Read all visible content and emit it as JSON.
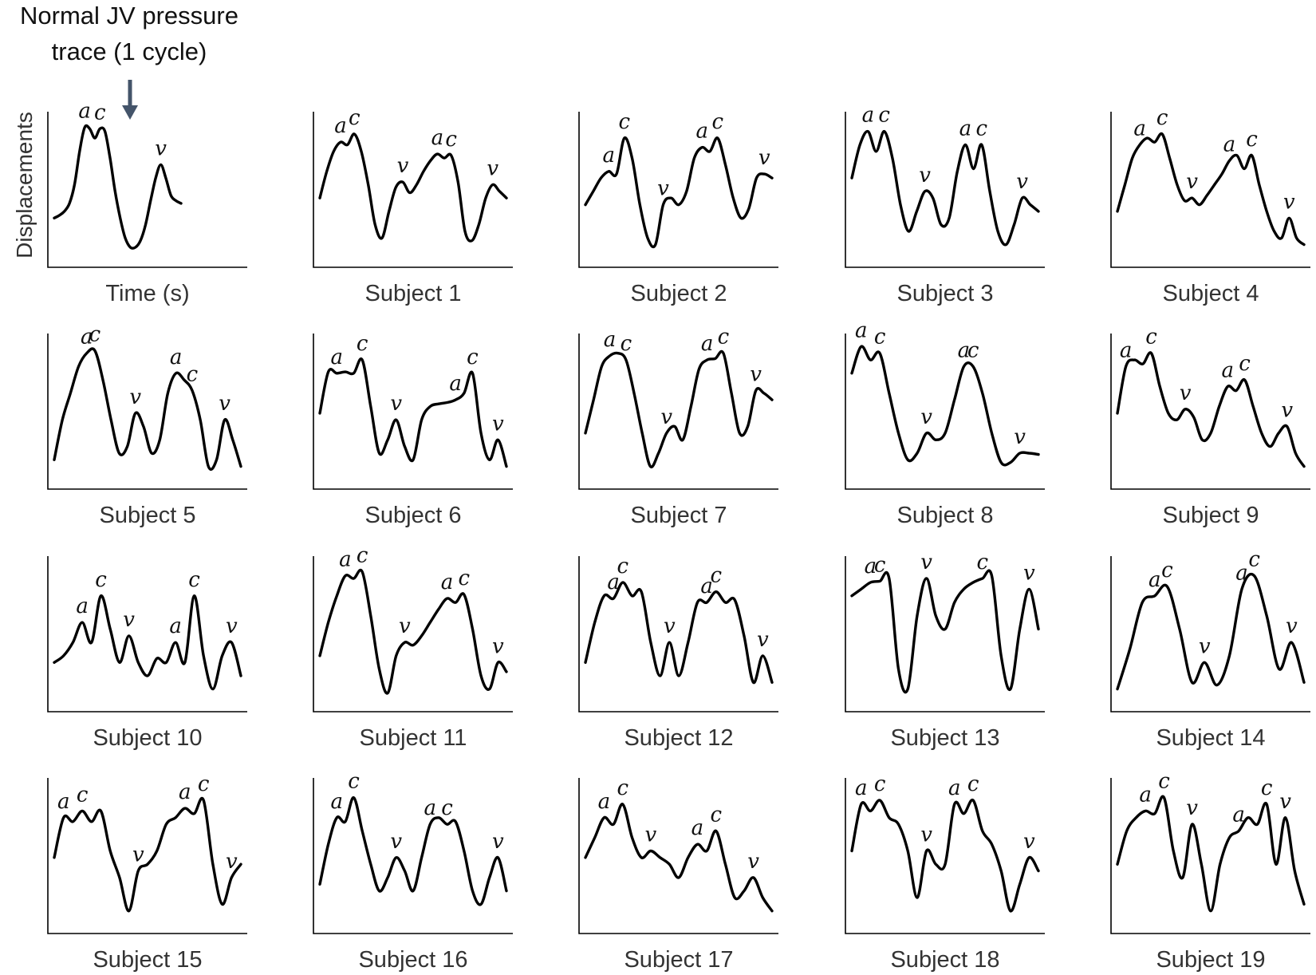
{
  "annotation": {
    "line1": "Normal JV pressure",
    "line2": "trace (1 cycle)"
  },
  "reference_panel": {
    "ylabel": "Displacements",
    "xlabel": "Time (s)"
  },
  "colors": {
    "trace": "#000000",
    "arrow": "#44546a",
    "label": "#333333"
  },
  "chart_data": {
    "type": "line",
    "title": "",
    "y_units": "arbitrary",
    "panels": [
      {
        "name": "",
        "xlabel": "Time (s)",
        "ylabel": "Displacements",
        "values": [
          0.25,
          0.27,
          0.3,
          0.36,
          0.5,
          0.75,
          0.93,
          0.92,
          0.85,
          0.92,
          0.9,
          0.7,
          0.45,
          0.25,
          0.1,
          0.03,
          0.03,
          0.08,
          0.2,
          0.38,
          0.55,
          0.65,
          0.55,
          0.42,
          0.38,
          0.36
        ],
        "labels": [
          {
            "t": "a",
            "i": 6
          },
          {
            "t": "c",
            "i": 9
          },
          {
            "t": "v",
            "i": 21
          }
        ]
      },
      {
        "name": "Subject 1",
        "values": [
          0.4,
          0.6,
          0.75,
          0.82,
          0.8,
          0.88,
          0.75,
          0.5,
          0.2,
          0.1,
          0.3,
          0.48,
          0.52,
          0.44,
          0.5,
          0.6,
          0.68,
          0.73,
          0.7,
          0.72,
          0.52,
          0.15,
          0.08,
          0.2,
          0.4,
          0.5,
          0.45,
          0.4
        ],
        "labels": [
          {
            "t": "a",
            "i": 3
          },
          {
            "t": "c",
            "i": 5
          },
          {
            "t": "v",
            "i": 12
          },
          {
            "t": "a",
            "i": 17
          },
          {
            "t": "c",
            "i": 19
          },
          {
            "t": "v",
            "i": 25
          }
        ]
      },
      {
        "name": "Subject 2",
        "values": [
          0.35,
          0.45,
          0.55,
          0.6,
          0.58,
          0.85,
          0.7,
          0.35,
          0.1,
          0.05,
          0.35,
          0.4,
          0.35,
          0.45,
          0.7,
          0.78,
          0.75,
          0.85,
          0.65,
          0.4,
          0.25,
          0.32,
          0.55,
          0.58,
          0.55
        ],
        "labels": [
          {
            "t": "a",
            "i": 3
          },
          {
            "t": "c",
            "i": 5
          },
          {
            "t": "v",
            "i": 10
          },
          {
            "t": "a",
            "i": 15
          },
          {
            "t": "c",
            "i": 17
          },
          {
            "t": "v",
            "i": 23
          }
        ]
      },
      {
        "name": "Subject 3",
        "values": [
          0.55,
          0.8,
          0.9,
          0.75,
          0.9,
          0.7,
          0.35,
          0.15,
          0.3,
          0.45,
          0.4,
          0.2,
          0.25,
          0.6,
          0.8,
          0.62,
          0.8,
          0.45,
          0.15,
          0.05,
          0.2,
          0.4,
          0.35,
          0.3
        ],
        "labels": [
          {
            "t": "a",
            "i": 2
          },
          {
            "t": "c",
            "i": 4
          },
          {
            "t": "v",
            "i": 9
          },
          {
            "t": "a",
            "i": 14
          },
          {
            "t": "c",
            "i": 16
          },
          {
            "t": "v",
            "i": 21
          }
        ]
      },
      {
        "name": "Subject 4",
        "values": [
          0.3,
          0.5,
          0.7,
          0.8,
          0.85,
          0.82,
          0.88,
          0.7,
          0.5,
          0.38,
          0.4,
          0.35,
          0.42,
          0.5,
          0.58,
          0.68,
          0.72,
          0.62,
          0.72,
          0.5,
          0.3,
          0.15,
          0.1,
          0.25,
          0.1,
          0.05
        ],
        "labels": [
          {
            "t": "a",
            "i": 3
          },
          {
            "t": "c",
            "i": 6
          },
          {
            "t": "v",
            "i": 10
          },
          {
            "t": "a",
            "i": 15
          },
          {
            "t": "c",
            "i": 18
          },
          {
            "t": "v",
            "i": 23
          }
        ]
      },
      {
        "name": "Subject 5",
        "values": [
          0.1,
          0.4,
          0.6,
          0.8,
          0.9,
          0.92,
          0.7,
          0.4,
          0.15,
          0.2,
          0.45,
          0.35,
          0.15,
          0.25,
          0.6,
          0.75,
          0.7,
          0.62,
          0.4,
          0.05,
          0.1,
          0.4,
          0.25,
          0.05
        ],
        "labels": [
          {
            "t": "a",
            "i": 4
          },
          {
            "t": "c",
            "i": 5
          },
          {
            "t": "v",
            "i": 10
          },
          {
            "t": "a",
            "i": 15
          },
          {
            "t": "c",
            "i": 17
          },
          {
            "t": "v",
            "i": 21
          }
        ]
      },
      {
        "name": "Subject 6",
        "values": [
          0.45,
          0.76,
          0.75,
          0.76,
          0.75,
          0.85,
          0.5,
          0.15,
          0.25,
          0.4,
          0.2,
          0.1,
          0.4,
          0.5,
          0.52,
          0.53,
          0.55,
          0.6,
          0.75,
          0.3,
          0.1,
          0.25,
          0.05
        ],
        "labels": [
          {
            "t": "a",
            "i": 2
          },
          {
            "t": "c",
            "i": 5
          },
          {
            "t": "v",
            "i": 9
          },
          {
            "t": "a",
            "i": 16
          },
          {
            "t": "c",
            "i": 18
          },
          {
            "t": "v",
            "i": 21
          }
        ]
      },
      {
        "name": "Subject 7",
        "values": [
          0.3,
          0.55,
          0.8,
          0.88,
          0.9,
          0.85,
          0.6,
          0.3,
          0.05,
          0.15,
          0.3,
          0.35,
          0.25,
          0.5,
          0.78,
          0.85,
          0.86,
          0.9,
          0.6,
          0.3,
          0.35,
          0.62,
          0.6,
          0.55
        ],
        "labels": [
          {
            "t": "a",
            "i": 3
          },
          {
            "t": "c",
            "i": 5
          },
          {
            "t": "v",
            "i": 10
          },
          {
            "t": "a",
            "i": 15
          },
          {
            "t": "c",
            "i": 17
          },
          {
            "t": "v",
            "i": 21
          }
        ]
      },
      {
        "name": "Subject 8",
        "values": [
          0.75,
          0.95,
          0.85,
          0.9,
          0.6,
          0.3,
          0.1,
          0.15,
          0.3,
          0.25,
          0.3,
          0.55,
          0.8,
          0.8,
          0.6,
          0.3,
          0.08,
          0.08,
          0.15,
          0.15,
          0.14
        ],
        "labels": [
          {
            "t": "a",
            "i": 1
          },
          {
            "t": "c",
            "i": 3
          },
          {
            "t": "v",
            "i": 8
          },
          {
            "t": "a",
            "i": 12
          },
          {
            "t": "c",
            "i": 13
          },
          {
            "t": "v",
            "i": 18
          }
        ]
      },
      {
        "name": "Subject 9",
        "values": [
          0.45,
          0.8,
          0.85,
          0.82,
          0.9,
          0.65,
          0.45,
          0.4,
          0.48,
          0.42,
          0.25,
          0.3,
          0.5,
          0.65,
          0.62,
          0.7,
          0.5,
          0.3,
          0.2,
          0.3,
          0.35,
          0.15,
          0.05
        ],
        "labels": [
          {
            "t": "a",
            "i": 1
          },
          {
            "t": "c",
            "i": 4
          },
          {
            "t": "v",
            "i": 8
          },
          {
            "t": "a",
            "i": 13
          },
          {
            "t": "c",
            "i": 15
          },
          {
            "t": "v",
            "i": 20
          }
        ]
      },
      {
        "name": "Subject 10",
        "values": [
          0.25,
          0.3,
          0.4,
          0.55,
          0.4,
          0.75,
          0.5,
          0.25,
          0.45,
          0.25,
          0.15,
          0.28,
          0.25,
          0.4,
          0.25,
          0.75,
          0.3,
          0.05,
          0.3,
          0.4,
          0.15
        ],
        "labels": [
          {
            "t": "a",
            "i": 3
          },
          {
            "t": "c",
            "i": 5
          },
          {
            "t": "v",
            "i": 8
          },
          {
            "t": "a",
            "i": 13
          },
          {
            "t": "c",
            "i": 15
          },
          {
            "t": "v",
            "i": 19
          }
        ]
      },
      {
        "name": "Subject 11",
        "values": [
          0.3,
          0.55,
          0.75,
          0.9,
          0.88,
          0.93,
          0.6,
          0.2,
          0.02,
          0.3,
          0.4,
          0.38,
          0.45,
          0.55,
          0.65,
          0.73,
          0.7,
          0.76,
          0.5,
          0.15,
          0.05,
          0.25,
          0.18
        ],
        "labels": [
          {
            "t": "a",
            "i": 3
          },
          {
            "t": "c",
            "i": 5
          },
          {
            "t": "v",
            "i": 10
          },
          {
            "t": "a",
            "i": 15
          },
          {
            "t": "c",
            "i": 17
          },
          {
            "t": "v",
            "i": 21
          }
        ]
      },
      {
        "name": "Subject 12",
        "values": [
          0.25,
          0.55,
          0.75,
          0.73,
          0.85,
          0.75,
          0.78,
          0.4,
          0.15,
          0.4,
          0.15,
          0.4,
          0.7,
          0.7,
          0.78,
          0.7,
          0.72,
          0.45,
          0.1,
          0.3,
          0.1
        ],
        "labels": [
          {
            "t": "a",
            "i": 3
          },
          {
            "t": "c",
            "i": 4
          },
          {
            "t": "v",
            "i": 9
          },
          {
            "t": "a",
            "i": 13
          },
          {
            "t": "c",
            "i": 14
          },
          {
            "t": "v",
            "i": 19
          }
        ]
      },
      {
        "name": "Subject 13",
        "values": [
          0.75,
          0.8,
          0.85,
          0.86,
          0.88,
          0.2,
          0.05,
          0.6,
          0.88,
          0.6,
          0.5,
          0.7,
          0.8,
          0.85,
          0.88,
          0.9,
          0.3,
          0.05,
          0.5,
          0.8,
          0.5
        ],
        "labels": [
          {
            "t": "a",
            "i": 2
          },
          {
            "t": "c",
            "i": 3
          },
          {
            "t": "v",
            "i": 8
          },
          {
            "t": "c",
            "i": 14
          },
          {
            "t": "v",
            "i": 19
          }
        ]
      },
      {
        "name": "Subject 14",
        "values": [
          0.05,
          0.35,
          0.7,
          0.75,
          0.82,
          0.5,
          0.1,
          0.25,
          0.08,
          0.3,
          0.8,
          0.9,
          0.6,
          0.2,
          0.4,
          0.1
        ],
        "labels": [
          {
            "t": "a",
            "i": 3
          },
          {
            "t": "c",
            "i": 4
          },
          {
            "t": "v",
            "i": 7
          },
          {
            "t": "a",
            "i": 10
          },
          {
            "t": "c",
            "i": 11
          },
          {
            "t": "v",
            "i": 14
          }
        ]
      },
      {
        "name": "Subject 15",
        "values": [
          0.45,
          0.75,
          0.72,
          0.8,
          0.72,
          0.8,
          0.5,
          0.3,
          0.05,
          0.35,
          0.4,
          0.5,
          0.7,
          0.75,
          0.82,
          0.78,
          0.88,
          0.4,
          0.1,
          0.3,
          0.4
        ],
        "labels": [
          {
            "t": "a",
            "i": 1
          },
          {
            "t": "c",
            "i": 3
          },
          {
            "t": "v",
            "i": 9
          },
          {
            "t": "a",
            "i": 14
          },
          {
            "t": "c",
            "i": 16
          },
          {
            "t": "v",
            "i": 19
          }
        ]
      },
      {
        "name": "Subject 16",
        "values": [
          0.25,
          0.55,
          0.75,
          0.72,
          0.9,
          0.65,
          0.4,
          0.2,
          0.3,
          0.45,
          0.35,
          0.2,
          0.45,
          0.7,
          0.75,
          0.7,
          0.72,
          0.5,
          0.2,
          0.1,
          0.3,
          0.45,
          0.2
        ],
        "labels": [
          {
            "t": "a",
            "i": 2
          },
          {
            "t": "c",
            "i": 4
          },
          {
            "t": "v",
            "i": 9
          },
          {
            "t": "a",
            "i": 13
          },
          {
            "t": "c",
            "i": 15
          },
          {
            "t": "v",
            "i": 21
          }
        ]
      },
      {
        "name": "Subject 17",
        "values": [
          0.45,
          0.6,
          0.75,
          0.7,
          0.85,
          0.6,
          0.45,
          0.5,
          0.45,
          0.4,
          0.3,
          0.45,
          0.55,
          0.5,
          0.65,
          0.4,
          0.15,
          0.2,
          0.3,
          0.15,
          0.05
        ],
        "labels": [
          {
            "t": "a",
            "i": 2
          },
          {
            "t": "c",
            "i": 4
          },
          {
            "t": "v",
            "i": 7
          },
          {
            "t": "a",
            "i": 12
          },
          {
            "t": "c",
            "i": 14
          },
          {
            "t": "v",
            "i": 18
          }
        ]
      },
      {
        "name": "Subject 18",
        "values": [
          0.5,
          0.85,
          0.8,
          0.88,
          0.75,
          0.7,
          0.5,
          0.15,
          0.5,
          0.4,
          0.4,
          0.85,
          0.78,
          0.88,
          0.65,
          0.55,
          0.35,
          0.05,
          0.25,
          0.45,
          0.35
        ],
        "labels": [
          {
            "t": "a",
            "i": 1
          },
          {
            "t": "c",
            "i": 3
          },
          {
            "t": "v",
            "i": 8
          },
          {
            "t": "a",
            "i": 11
          },
          {
            "t": "c",
            "i": 13
          },
          {
            "t": "v",
            "i": 19
          }
        ]
      },
      {
        "name": "Subject 19",
        "values": [
          0.4,
          0.65,
          0.75,
          0.8,
          0.78,
          0.9,
          0.5,
          0.3,
          0.7,
          0.4,
          0.05,
          0.4,
          0.6,
          0.65,
          0.75,
          0.7,
          0.85,
          0.4,
          0.75,
          0.35,
          0.1
        ],
        "labels": [
          {
            "t": "a",
            "i": 3
          },
          {
            "t": "c",
            "i": 5
          },
          {
            "t": "v",
            "i": 8
          },
          {
            "t": "a",
            "i": 13
          },
          {
            "t": "c",
            "i": 16
          },
          {
            "t": "v",
            "i": 18
          }
        ]
      }
    ]
  }
}
